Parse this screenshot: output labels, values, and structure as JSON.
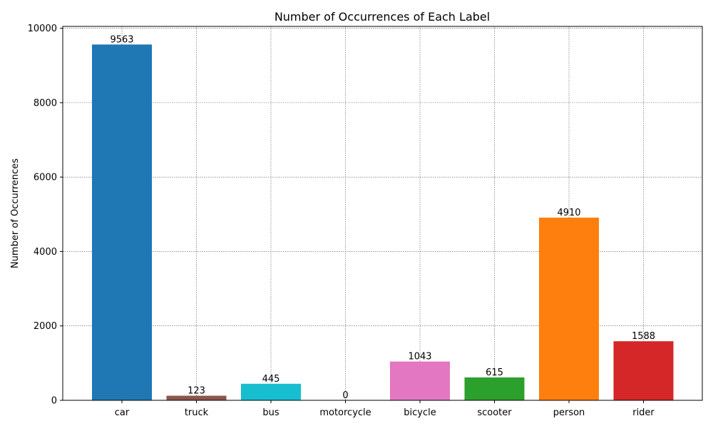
{
  "chart_data": {
    "type": "bar",
    "title": "Number of Occurrences of Each Label",
    "xlabel": "",
    "ylabel": "Number of Occurrences",
    "categories": [
      "car",
      "truck",
      "bus",
      "motorcycle",
      "bicycle",
      "scooter",
      "person",
      "rider"
    ],
    "values": [
      9563,
      123,
      445,
      0,
      1043,
      615,
      4910,
      1588
    ],
    "data_labels": [
      "9563",
      "123",
      "445",
      "0",
      "1043",
      "615",
      "4910",
      "1588"
    ],
    "colors": [
      "#1f77b4",
      "#8c564b",
      "#17becf",
      "#7f7f7f",
      "#e377c2",
      "#2ca02c",
      "#ff7f0e",
      "#d62728"
    ],
    "ylim": [
      0,
      10050
    ],
    "yticks": [
      0,
      2000,
      4000,
      6000,
      8000,
      10000
    ],
    "ytick_labels": [
      "0",
      "2000",
      "4000",
      "6000",
      "8000",
      "10000"
    ],
    "grid": true,
    "grid_style": "dotted",
    "legend": "none"
  }
}
